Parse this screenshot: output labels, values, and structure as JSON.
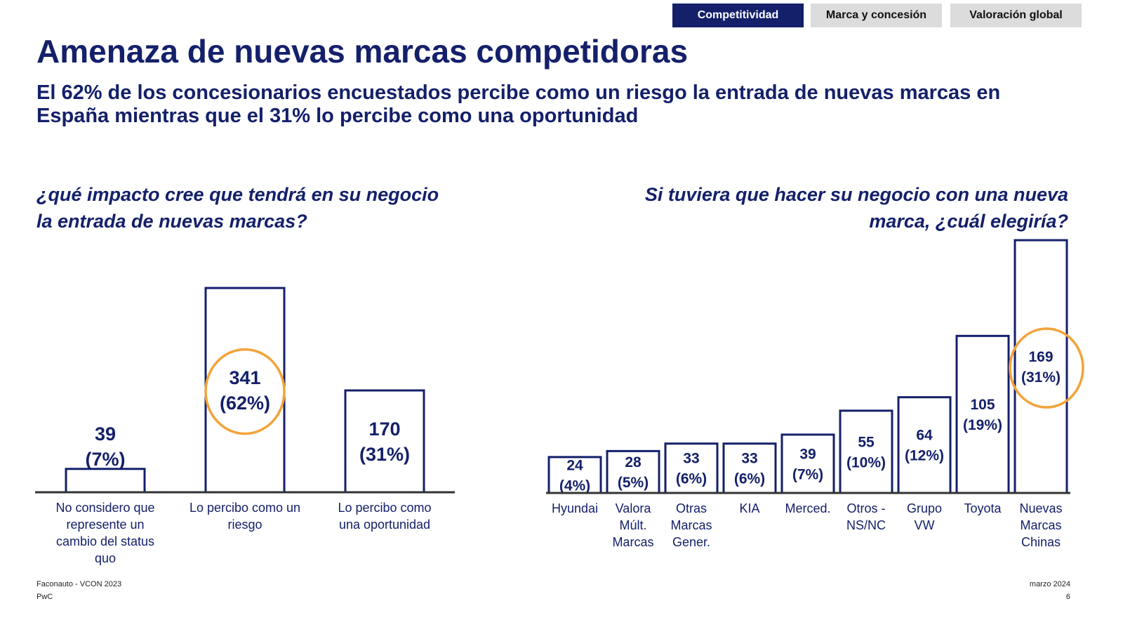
{
  "tabs": [
    {
      "label": "Competitividad",
      "active": true
    },
    {
      "label": "Marca y concesión",
      "active": false
    },
    {
      "label": "Valoración global",
      "active": false
    }
  ],
  "title": "Amenaza de nuevas marcas competidoras",
  "subtitle": "El 62% de los concesionarios encuestados percibe como un riesgo la entrada de nuevas marcas en España mientras que el 31% lo percibe como una oportunidad",
  "colors": {
    "navy": "#14206a",
    "highlight": "#f3a33a"
  },
  "chart_data": [
    {
      "type": "bar",
      "title": "¿qué impacto cree que tendrá en su negocio la entrada de nuevas marcas?",
      "categories": [
        "No considero que represente un cambio del status quo",
        "Lo percibo como un riesgo",
        "Lo percibo como una oportunidad"
      ],
      "values": [
        39,
        341,
        170
      ],
      "percent_labels": [
        "(7%)",
        "(62%)",
        "(31%)"
      ],
      "highlighted": [
        1
      ]
    },
    {
      "type": "bar",
      "title": "Si tuviera que hacer su negocio con una nueva marca, ¿cuál elegiría?",
      "categories": [
        "Hyundai",
        "Valora Múlt. Marcas",
        "Otras Marcas Gener.",
        "KIA",
        "Merced.",
        "Otros - NS/NC",
        "Grupo VW",
        "Toyota",
        "Nuevas Marcas Chinas"
      ],
      "values": [
        24,
        28,
        33,
        33,
        39,
        55,
        64,
        105,
        169
      ],
      "percent_labels": [
        "(4%)",
        "(5%)",
        "(6%)",
        "(6%)",
        "(7%)",
        "(10%)",
        "(12%)",
        "(19%)",
        "(31%)"
      ],
      "highlighted": [
        8
      ]
    }
  ],
  "footer": {
    "source": "Faconauto - VCON 2023",
    "company": "PwC",
    "date": "marzo 2024",
    "page": "6"
  }
}
